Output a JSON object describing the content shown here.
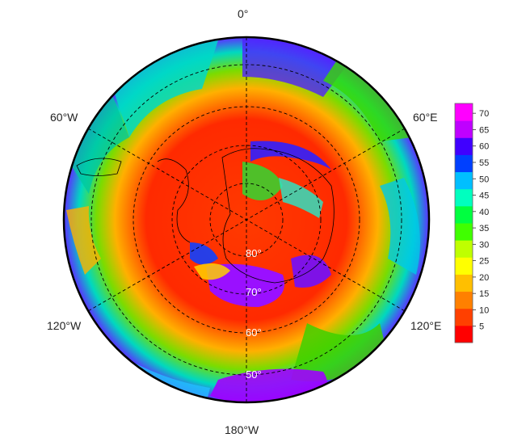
{
  "map": {
    "projection": "south-polar-stereographic",
    "longitude_labels": {
      "top": "0°",
      "top_right": "60°E",
      "bottom_right": "120°E",
      "bottom": "180°W",
      "bottom_left": "120°W",
      "top_left": "60°W"
    },
    "latitude_labels": [
      "80°",
      "70°",
      "60°",
      "50°"
    ],
    "colorbar": {
      "ticks": [
        "70",
        "65",
        "60",
        "55",
        "50",
        "45",
        "40",
        "35",
        "30",
        "25",
        "20",
        "15",
        "10",
        "5"
      ],
      "min": 0,
      "max": 73,
      "colors": [
        "#ff0000",
        "#ff4000",
        "#ff8000",
        "#ffbf00",
        "#ffff00",
        "#bfff00",
        "#40ff00",
        "#00ff40",
        "#00ffbf",
        "#00bfff",
        "#0040ff",
        "#4000ff",
        "#bf00ff",
        "#ff00ff"
      ]
    },
    "region_colors": {
      "red": "#ff2000",
      "orange": "#ff6a00",
      "yellow": "#ffe000",
      "green": "#3ddc00",
      "cyan": "#00e0d0",
      "blue": "#1e3cff",
      "purple": "#9a10ff",
      "magenta": "#e000ff"
    }
  }
}
